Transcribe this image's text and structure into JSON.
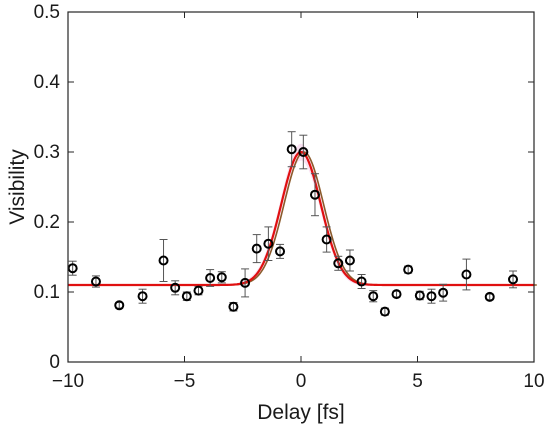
{
  "chart_data": {
    "type": "scatter",
    "title": "",
    "xlabel": "Delay [fs]",
    "ylabel": "Visibility",
    "xlim": [
      -10,
      10
    ],
    "ylim": [
      0,
      0.5
    ],
    "xticks": [
      -10,
      -5,
      0,
      5,
      10
    ],
    "xtick_labels": [
      "−10",
      "−5",
      "0",
      "5",
      "10"
    ],
    "yticks": [
      0,
      0.1,
      0.2,
      0.3,
      0.4,
      0.5
    ],
    "ytick_labels": [
      "0",
      "0.1",
      "0.2",
      "0.3",
      "0.4",
      "0.5"
    ],
    "grid": false,
    "legend": null,
    "colors": {
      "markers": "#000000",
      "errorbars": "#555555",
      "fit_red": "#e01010",
      "fit_brown": "#8b5a2b",
      "shade": "#f5c8e8"
    },
    "series": [
      {
        "type": "scatter_errorbar",
        "points": [
          {
            "x": -9.8,
            "y": 0.134,
            "err": 0.01
          },
          {
            "x": -8.8,
            "y": 0.115,
            "err": 0.008
          },
          {
            "x": -7.8,
            "y": 0.081,
            "err": 0.004
          },
          {
            "x": -6.8,
            "y": 0.094,
            "err": 0.01
          },
          {
            "x": -5.9,
            "y": 0.145,
            "err": 0.03
          },
          {
            "x": -5.4,
            "y": 0.106,
            "err": 0.01
          },
          {
            "x": -4.9,
            "y": 0.094,
            "err": 0.006
          },
          {
            "x": -4.4,
            "y": 0.102,
            "err": 0.006
          },
          {
            "x": -3.9,
            "y": 0.12,
            "err": 0.012
          },
          {
            "x": -3.4,
            "y": 0.121,
            "err": 0.008
          },
          {
            "x": -2.9,
            "y": 0.079,
            "err": 0.006
          },
          {
            "x": -2.4,
            "y": 0.113,
            "err": 0.02
          },
          {
            "x": -1.9,
            "y": 0.162,
            "err": 0.02
          },
          {
            "x": -1.4,
            "y": 0.169,
            "err": 0.024
          },
          {
            "x": -0.9,
            "y": 0.158,
            "err": 0.01
          },
          {
            "x": -0.4,
            "y": 0.304,
            "err": 0.025
          },
          {
            "x": 0.1,
            "y": 0.3,
            "err": 0.024
          },
          {
            "x": 0.6,
            "y": 0.239,
            "err": 0.03
          },
          {
            "x": 1.1,
            "y": 0.175,
            "err": 0.018
          },
          {
            "x": 1.6,
            "y": 0.141,
            "err": 0.01
          },
          {
            "x": 2.1,
            "y": 0.145,
            "err": 0.015
          },
          {
            "x": 2.6,
            "y": 0.115,
            "err": 0.01
          },
          {
            "x": 3.1,
            "y": 0.094,
            "err": 0.008
          },
          {
            "x": 3.6,
            "y": 0.072,
            "err": 0.005
          },
          {
            "x": 4.1,
            "y": 0.097,
            "err": 0.004
          },
          {
            "x": 4.6,
            "y": 0.132,
            "err": 0.005
          },
          {
            "x": 5.1,
            "y": 0.095,
            "err": 0.006
          },
          {
            "x": 5.6,
            "y": 0.094,
            "err": 0.01
          },
          {
            "x": 6.1,
            "y": 0.099,
            "err": 0.012
          },
          {
            "x": 7.1,
            "y": 0.125,
            "err": 0.022
          },
          {
            "x": 8.1,
            "y": 0.093,
            "err": 0.004
          },
          {
            "x": 9.1,
            "y": 0.118,
            "err": 0.012
          }
        ]
      },
      {
        "type": "gaussian_fit",
        "baseline": 0.11,
        "amplitude": 0.19,
        "center": 0.0,
        "sigma": 0.85
      }
    ]
  }
}
